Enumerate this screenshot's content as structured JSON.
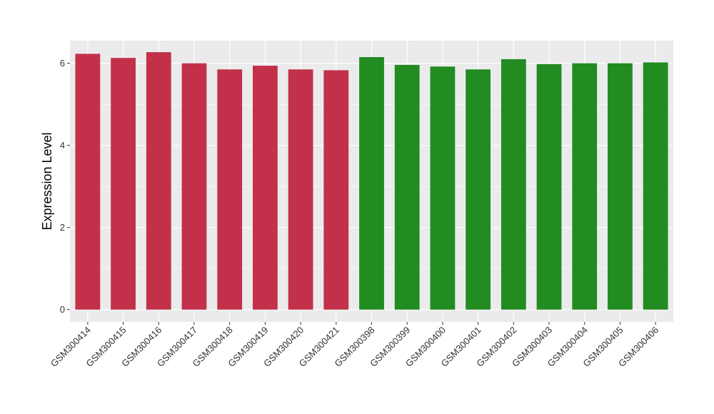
{
  "chart_data": {
    "type": "bar",
    "title": "",
    "xlabel": "",
    "ylabel": "Expression Level",
    "ylim": [
      -0.3,
      6.55
    ],
    "yticks": [
      0,
      2,
      4,
      6
    ],
    "grid": true,
    "legend": "none",
    "colors": {
      "group1": "#C3304A",
      "group2": "#228B22",
      "panel": "#EBEBEB",
      "gridline": "#FFFFFF"
    },
    "bars": [
      {
        "category": "GSM300414",
        "value": 6.23,
        "group": "group1"
      },
      {
        "category": "GSM300415",
        "value": 6.13,
        "group": "group1"
      },
      {
        "category": "GSM300416",
        "value": 6.27,
        "group": "group1"
      },
      {
        "category": "GSM300417",
        "value": 6.0,
        "group": "group1"
      },
      {
        "category": "GSM300418",
        "value": 5.85,
        "group": "group1"
      },
      {
        "category": "GSM300419",
        "value": 5.94,
        "group": "group1"
      },
      {
        "category": "GSM300420",
        "value": 5.85,
        "group": "group1"
      },
      {
        "category": "GSM300421",
        "value": 5.83,
        "group": "group1"
      },
      {
        "category": "GSM300398",
        "value": 6.15,
        "group": "group2"
      },
      {
        "category": "GSM300399",
        "value": 5.96,
        "group": "group2"
      },
      {
        "category": "GSM300400",
        "value": 5.92,
        "group": "group2"
      },
      {
        "category": "GSM300401",
        "value": 5.85,
        "group": "group2"
      },
      {
        "category": "GSM300402",
        "value": 6.1,
        "group": "group2"
      },
      {
        "category": "GSM300403",
        "value": 5.98,
        "group": "group2"
      },
      {
        "category": "GSM300404",
        "value": 6.0,
        "group": "group2"
      },
      {
        "category": "GSM300405",
        "value": 6.0,
        "group": "group2"
      },
      {
        "category": "GSM300406",
        "value": 6.02,
        "group": "group2"
      }
    ]
  }
}
